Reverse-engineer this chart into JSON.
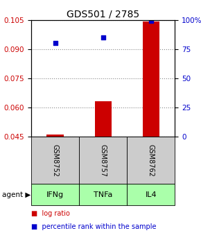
{
  "title": "GDS501 / 2785",
  "samples": [
    "GSM8752",
    "GSM8757",
    "GSM8762"
  ],
  "agents": [
    "IFNg",
    "TNFa",
    "IL4"
  ],
  "log_ratios": [
    0.046,
    0.063,
    0.104
  ],
  "percentile_ranks": [
    0.093,
    0.096,
    0.1045
  ],
  "ylim_left": [
    0.045,
    0.105
  ],
  "ylim_right": [
    0,
    100
  ],
  "yticks_left": [
    0.045,
    0.06,
    0.075,
    0.09,
    0.105
  ],
  "yticks_right": [
    0,
    25,
    50,
    75,
    100
  ],
  "bar_color": "#cc0000",
  "dot_color": "#0000cc",
  "sample_box_color": "#cccccc",
  "agent_box_color": "#aaffaa",
  "grid_color": "#888888",
  "title_fontsize": 10,
  "tick_fontsize": 7.5,
  "legend_fontsize": 7,
  "label_fontsize": 8,
  "sample_fontsize": 7
}
